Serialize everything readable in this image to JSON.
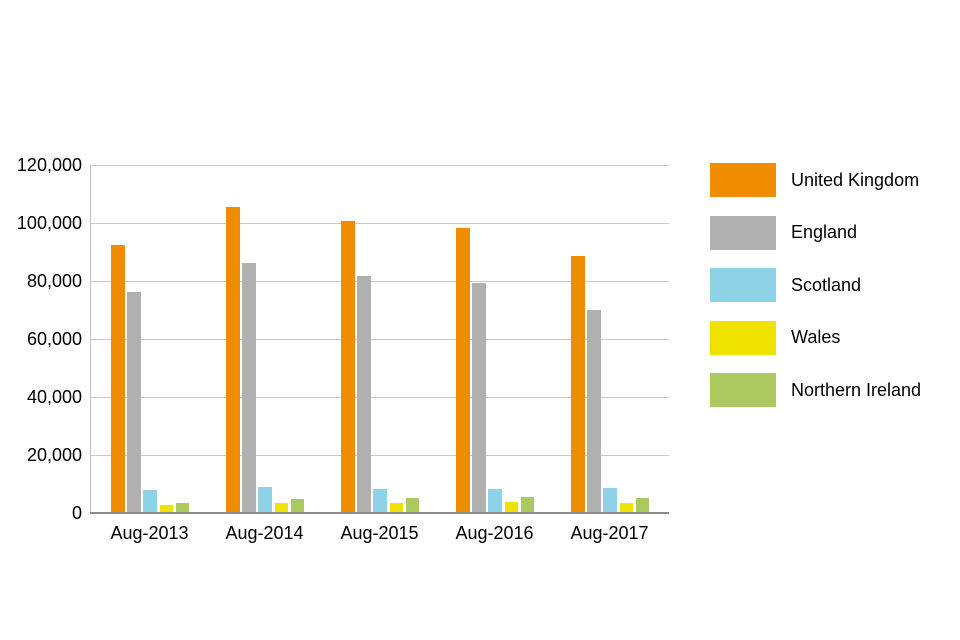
{
  "chart_data": {
    "type": "bar",
    "title": "",
    "categories": [
      "Aug-2013",
      "Aug-2014",
      "Aug-2015",
      "Aug-2016",
      "Aug-2017"
    ],
    "series": [
      {
        "name": "United Kingdom",
        "color": "#F08C00",
        "values": [
          92500,
          105400,
          100600,
          98300,
          88600
        ]
      },
      {
        "name": "England",
        "color": "#B0B0B0",
        "values": [
          76200,
          86200,
          81800,
          79400,
          70000
        ]
      },
      {
        "name": "Scotland",
        "color": "#8ED2E7",
        "values": [
          7900,
          8900,
          8200,
          8200,
          8600
        ]
      },
      {
        "name": "Wales",
        "color": "#F0E200",
        "values": [
          2800,
          3300,
          3300,
          3700,
          3300
        ]
      },
      {
        "name": "Northern Ireland",
        "color": "#ABC95E",
        "values": [
          3500,
          4900,
          5200,
          5400,
          5200
        ]
      }
    ],
    "ylim": [
      0,
      120000
    ],
    "y_tick_step": 20000,
    "y_tick_labels": [
      "0",
      "20,000",
      "40,000",
      "60,000",
      "80,000",
      "100,000",
      "120,000"
    ],
    "xlabel": "",
    "ylabel": "",
    "grid": "horizontal",
    "legend_position": "right"
  },
  "colors": {
    "background": "#FFFFFF",
    "gridline": "#C9C9C9",
    "axis_left": "#BFBFBF",
    "axis_bottom": "#8C8C8C",
    "text": "#000000"
  }
}
